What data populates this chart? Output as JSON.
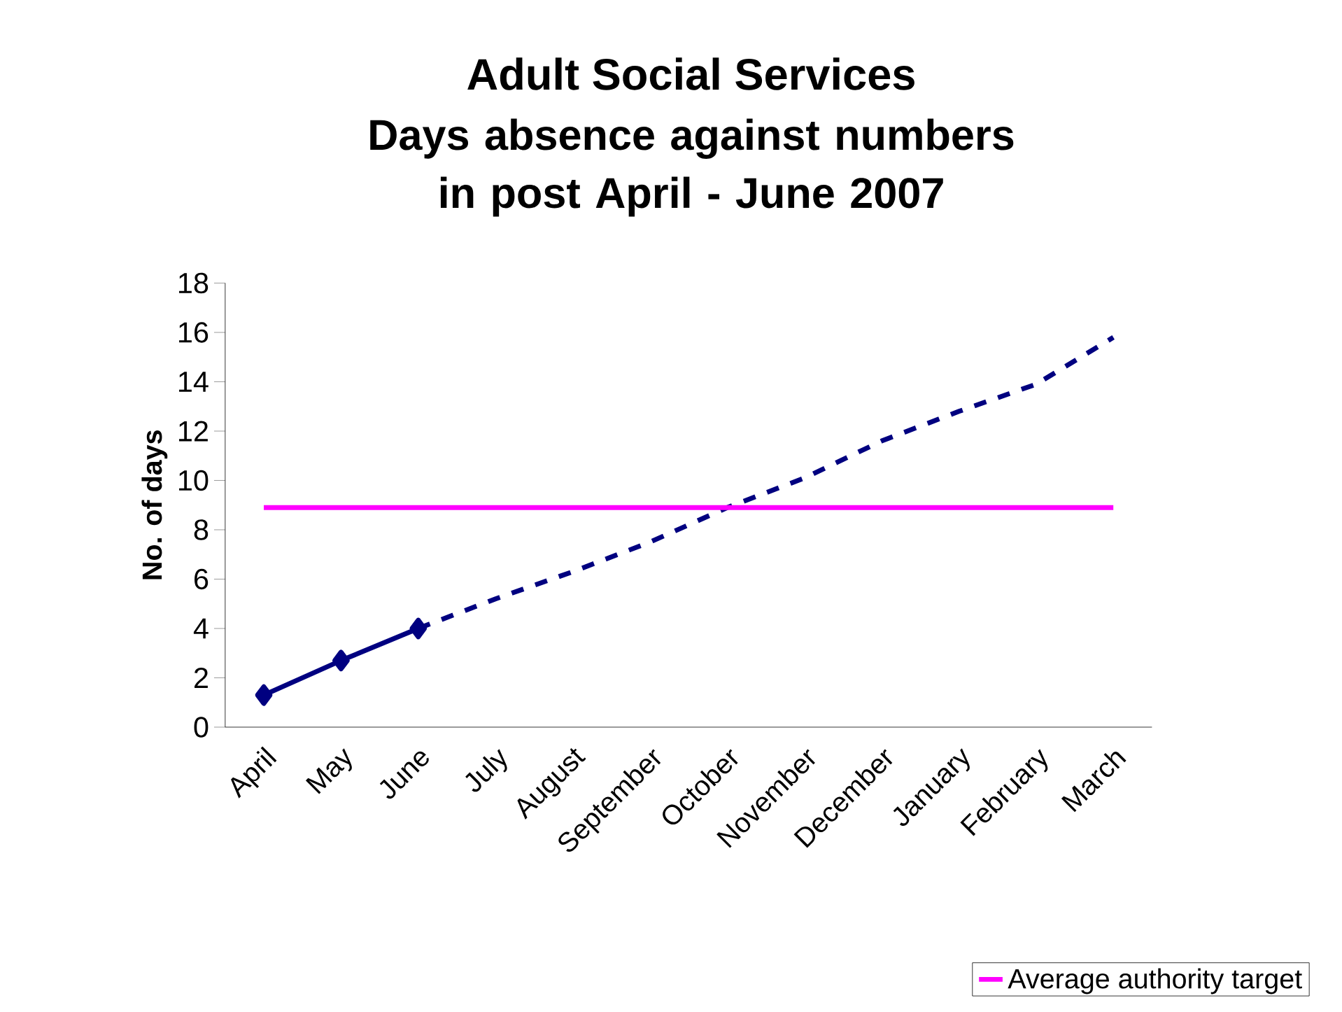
{
  "chart_data": {
    "type": "line",
    "title": "Adult Social Services",
    "subtitle": "Days absence against numbers in post April - June 2007",
    "ylabel": "No. of days",
    "categories": [
      "April",
      "May",
      "June",
      "July",
      "August",
      "September",
      "October",
      "November",
      "December",
      "January",
      "February",
      "March"
    ],
    "series": [
      {
        "color": "#000080",
        "marker": "diamond",
        "line_style": "solid",
        "values": [
          1.3,
          2.7,
          4.0,
          null,
          null,
          null,
          null,
          null,
          null,
          null,
          null,
          null
        ]
      },
      {
        "color": "#000080",
        "marker": "none",
        "line_style": "dashed",
        "values": [
          null,
          null,
          4.0,
          5.2,
          6.3,
          7.5,
          8.9,
          10.1,
          11.6,
          12.8,
          13.9,
          15.8
        ]
      },
      {
        "name": "Average authority target",
        "color": "#ff00ff",
        "marker": "none",
        "line_style": "solid",
        "values": [
          8.9,
          8.9,
          8.9,
          8.9,
          8.9,
          8.9,
          8.9,
          8.9,
          8.9,
          8.9,
          8.9,
          8.9
        ]
      }
    ],
    "ylim": [
      0,
      18
    ],
    "yticks": [
      0,
      2,
      4,
      6,
      8,
      10,
      12,
      14,
      16,
      18
    ],
    "grid": false,
    "legend": "bottom right"
  }
}
